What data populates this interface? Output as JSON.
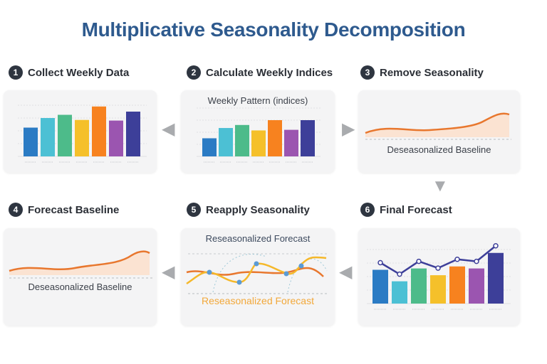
{
  "title": "Multiplicative Seasonality Decomposition",
  "steps": [
    {
      "number": "1",
      "label": "Collect Weekly Data"
    },
    {
      "number": "2",
      "label": "Calculate Weekly Indices"
    },
    {
      "number": "3",
      "label": "Remove Seasonality"
    },
    {
      "number": "4",
      "label": "Forecast Baseline"
    },
    {
      "number": "5",
      "label": "Reapply Seasonality"
    },
    {
      "number": "6",
      "label": "Final Forecast"
    }
  ],
  "panels": {
    "weekly_pattern_title": "Weekly Pattern (indices)",
    "deseasonalized_label_3": "Deseasonalized Baseline",
    "deseasonalized_label_4": "Deseasonalized Baseline",
    "reseasonalized_title": "Reseasonalized Forecast",
    "reseasonalized_caption": "Reseasonalized Forecast"
  },
  "colors": {
    "title": "#2e5a8e",
    "bars": [
      "#2b7bc4",
      "#4cc0d4",
      "#4dbb8a",
      "#f5c02a",
      "#f7821f",
      "#9b55b0",
      "#3d3f99"
    ],
    "baseline": "#e8772e",
    "forecast_line": "#3d3f99",
    "seasonal_line": "#f5b82a"
  },
  "chart_data": [
    {
      "type": "bar",
      "name_hint": "step-1",
      "values_pct_of_axis": [
        45,
        60,
        65,
        57,
        78,
        56,
        70
      ]
    },
    {
      "type": "bar",
      "name_hint": "step-2",
      "values_pct_of_axis": [
        30,
        47,
        52,
        43,
        60,
        44,
        60
      ]
    },
    {
      "type": "bar",
      "name_hint": "step-6",
      "values_pct_of_axis": [
        50,
        33,
        52,
        42,
        55,
        52,
        75
      ]
    }
  ]
}
